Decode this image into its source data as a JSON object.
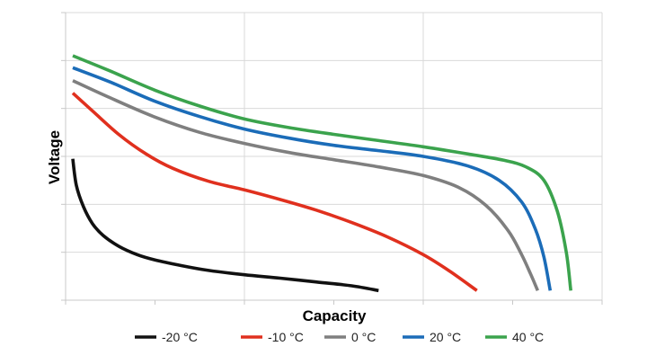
{
  "chart_data": {
    "type": "line",
    "title": "",
    "xlabel": "Capacity",
    "ylabel": "Voltage",
    "xlim": [
      0,
      6
    ],
    "ylim": [
      0,
      6
    ],
    "x_ticks_labeled": false,
    "y_ticks_labeled": false,
    "grid": true,
    "legend_position": "bottom",
    "series": [
      {
        "name": "-20 °C",
        "color": "#111111",
        "points": [
          [
            0.08,
            2.95
          ],
          [
            0.12,
            2.4
          ],
          [
            0.2,
            1.95
          ],
          [
            0.3,
            1.6
          ],
          [
            0.42,
            1.35
          ],
          [
            0.6,
            1.12
          ],
          [
            0.8,
            0.95
          ],
          [
            1.0,
            0.84
          ],
          [
            1.3,
            0.72
          ],
          [
            1.6,
            0.62
          ],
          [
            2.0,
            0.53
          ],
          [
            2.4,
            0.46
          ],
          [
            2.8,
            0.38
          ],
          [
            3.2,
            0.3
          ],
          [
            3.5,
            0.2
          ]
        ]
      },
      {
        "name": "-10 °C",
        "color": "#e0301e",
        "points": [
          [
            0.08,
            4.32
          ],
          [
            0.3,
            3.95
          ],
          [
            0.6,
            3.45
          ],
          [
            0.9,
            3.05
          ],
          [
            1.2,
            2.75
          ],
          [
            1.6,
            2.48
          ],
          [
            2.0,
            2.3
          ],
          [
            2.4,
            2.1
          ],
          [
            2.8,
            1.88
          ],
          [
            3.2,
            1.62
          ],
          [
            3.6,
            1.32
          ],
          [
            4.0,
            0.95
          ],
          [
            4.3,
            0.6
          ],
          [
            4.6,
            0.2
          ]
        ]
      },
      {
        "name": "0 °C",
        "color": "#7f7f7f",
        "points": [
          [
            0.08,
            4.58
          ],
          [
            0.5,
            4.22
          ],
          [
            1.0,
            3.82
          ],
          [
            1.5,
            3.5
          ],
          [
            2.0,
            3.27
          ],
          [
            2.5,
            3.08
          ],
          [
            3.0,
            2.93
          ],
          [
            3.5,
            2.78
          ],
          [
            4.0,
            2.6
          ],
          [
            4.4,
            2.35
          ],
          [
            4.7,
            1.98
          ],
          [
            4.95,
            1.45
          ],
          [
            5.1,
            0.95
          ],
          [
            5.2,
            0.55
          ],
          [
            5.28,
            0.2
          ]
        ]
      },
      {
        "name": "20 °C",
        "color": "#1b6cb8",
        "points": [
          [
            0.08,
            4.85
          ],
          [
            0.5,
            4.55
          ],
          [
            1.0,
            4.15
          ],
          [
            1.5,
            3.83
          ],
          [
            2.0,
            3.57
          ],
          [
            2.5,
            3.38
          ],
          [
            3.0,
            3.23
          ],
          [
            3.5,
            3.12
          ],
          [
            4.0,
            3.0
          ],
          [
            4.5,
            2.8
          ],
          [
            4.85,
            2.5
          ],
          [
            5.1,
            2.05
          ],
          [
            5.25,
            1.5
          ],
          [
            5.35,
            0.9
          ],
          [
            5.42,
            0.2
          ]
        ]
      },
      {
        "name": "40 °C",
        "color": "#3ba34d",
        "points": [
          [
            0.08,
            5.1
          ],
          [
            0.5,
            4.78
          ],
          [
            1.0,
            4.38
          ],
          [
            1.5,
            4.05
          ],
          [
            2.0,
            3.78
          ],
          [
            2.5,
            3.6
          ],
          [
            3.0,
            3.46
          ],
          [
            3.5,
            3.33
          ],
          [
            4.0,
            3.2
          ],
          [
            4.5,
            3.05
          ],
          [
            4.9,
            2.92
          ],
          [
            5.15,
            2.78
          ],
          [
            5.35,
            2.5
          ],
          [
            5.5,
            1.85
          ],
          [
            5.6,
            1.0
          ],
          [
            5.65,
            0.2
          ]
        ]
      }
    ]
  }
}
